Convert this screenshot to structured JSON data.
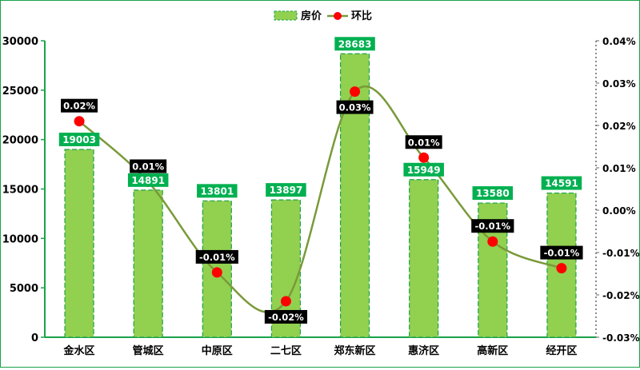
{
  "chart_data": {
    "type": "bar",
    "legend_position": "top-center",
    "categories": [
      "金水区",
      "管城区",
      "中原区",
      "二七区",
      "郑东新区",
      "惠济区",
      "高新区",
      "经开区"
    ],
    "series": [
      {
        "name": "房价",
        "type": "bar",
        "axis": "left",
        "values": [
          19003,
          14891,
          13801,
          13897,
          28683,
          15949,
          13580,
          14591
        ],
        "labels": [
          "19003",
          "14891",
          "13801",
          "13897",
          "28683",
          "15949",
          "13580",
          "14591"
        ],
        "color": "#92d050"
      },
      {
        "name": "环比",
        "type": "line",
        "axis": "right",
        "values": [
          0.021,
          0.0067,
          -0.0147,
          -0.0215,
          0.028,
          0.0124,
          -0.0074,
          -0.0137
        ],
        "labels": [
          "0.02%",
          "0.01%",
          "-0.01%",
          "-0.02%",
          "0.03%",
          "0.01%",
          "-0.01%",
          "-0.01%"
        ],
        "color": "#7a9a3a",
        "marker_color": "#ff0000"
      }
    ],
    "y_left": {
      "min": 0,
      "max": 30000,
      "ticks": [
        "0",
        "5000",
        "10000",
        "15000",
        "20000",
        "25000",
        "30000"
      ]
    },
    "y_right": {
      "min": -0.03,
      "max": 0.04,
      "ticks": [
        "-0.03%",
        "-0.02%",
        "-0.01%",
        "0.00%",
        "0.01%",
        "0.02%",
        "0.03%",
        "0.04%"
      ]
    },
    "grid": false
  }
}
